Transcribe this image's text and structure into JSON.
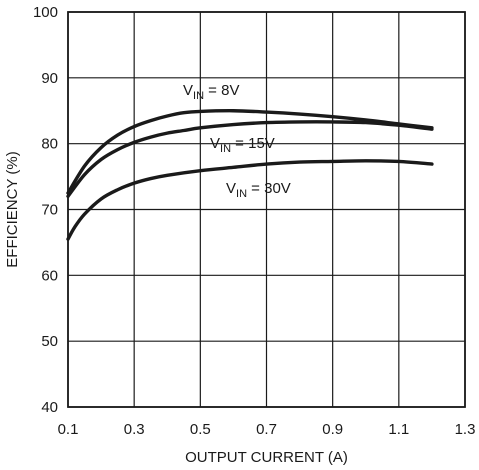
{
  "chart_data": {
    "type": "line",
    "xlabel": "OUTPUT CURRENT (A)",
    "ylabel": "EFFICIENCY (%)",
    "xlim": [
      0.1,
      1.3
    ],
    "ylim": [
      40,
      100
    ],
    "x_ticks": [
      "0.1",
      "0.3",
      "0.5",
      "0.7",
      "0.9",
      "1.1",
      "1.3"
    ],
    "y_ticks": [
      "40",
      "50",
      "60",
      "70",
      "80",
      "90",
      "100"
    ],
    "grid": true,
    "series": [
      {
        "name": "V_IN = 8V",
        "label_main": "V",
        "label_sub": "IN",
        "label_rest": " = 8V",
        "x": [
          0.1,
          0.15,
          0.2,
          0.25,
          0.3,
          0.35,
          0.4,
          0.45,
          0.5,
          0.6,
          0.7,
          0.8,
          0.9,
          1.0,
          1.1,
          1.2
        ],
        "y": [
          72.5,
          76.6,
          79.4,
          81.3,
          82.6,
          83.5,
          84.2,
          84.7,
          84.9,
          85.0,
          84.8,
          84.5,
          84.1,
          83.6,
          83.0,
          82.4
        ]
      },
      {
        "name": "V_IN = 15V",
        "label_main": "V",
        "label_sub": "IN",
        "label_rest": " = 15V",
        "x": [
          0.1,
          0.15,
          0.2,
          0.25,
          0.3,
          0.35,
          0.4,
          0.45,
          0.5,
          0.6,
          0.7,
          0.8,
          0.9,
          1.0,
          1.1,
          1.2
        ],
        "y": [
          72.0,
          75.3,
          77.6,
          79.1,
          80.2,
          81.0,
          81.6,
          82.0,
          82.4,
          82.9,
          83.2,
          83.3,
          83.3,
          83.2,
          82.8,
          82.2
        ]
      },
      {
        "name": "V_IN = 30V",
        "label_main": "V",
        "label_sub": "IN",
        "label_rest": " = 30V",
        "x": [
          0.1,
          0.12,
          0.15,
          0.2,
          0.25,
          0.3,
          0.35,
          0.4,
          0.5,
          0.6,
          0.7,
          0.8,
          0.9,
          1.0,
          1.1,
          1.2
        ],
        "y": [
          65.5,
          67.3,
          69.3,
          71.6,
          73.0,
          74.0,
          74.7,
          75.2,
          75.9,
          76.4,
          76.9,
          77.2,
          77.3,
          77.4,
          77.3,
          76.9
        ]
      }
    ]
  }
}
